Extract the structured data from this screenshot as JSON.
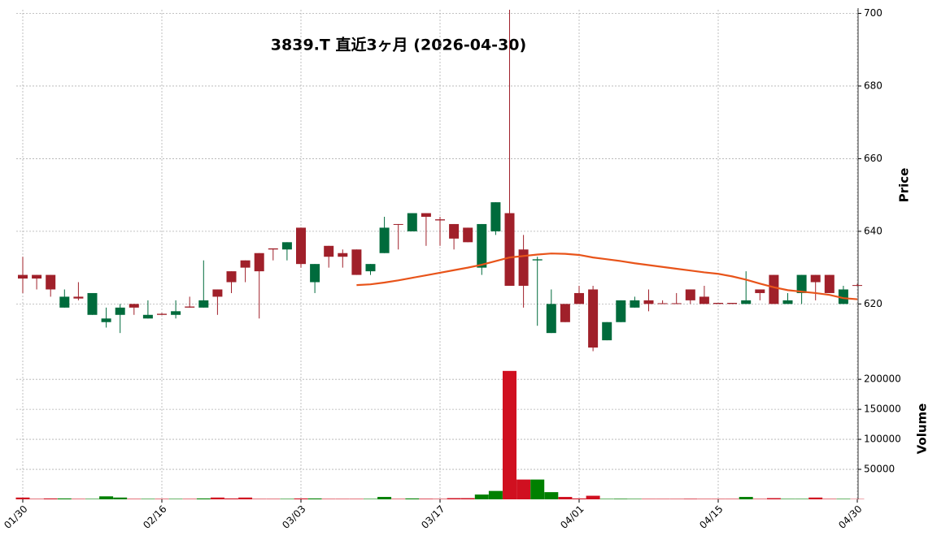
{
  "chart_data": {
    "type": "candlestick",
    "title": "3839.T  直近3ヶ月  (2026-04-30)",
    "categories": [
      "01/30",
      null,
      null,
      null,
      null,
      null,
      null,
      null,
      null,
      null,
      "02/16",
      null,
      null,
      null,
      null,
      null,
      null,
      null,
      null,
      null,
      "03/03",
      null,
      null,
      null,
      null,
      null,
      null,
      null,
      null,
      null,
      "03/17",
      null,
      null,
      null,
      null,
      null,
      null,
      null,
      null,
      null,
      "04/01",
      null,
      null,
      null,
      null,
      null,
      null,
      null,
      null,
      null,
      "04/15",
      null,
      null,
      null,
      null,
      null,
      null,
      null,
      null,
      null,
      "04/30"
    ],
    "open": [
      627,
      627,
      624,
      622,
      621.5,
      623,
      616,
      619,
      619,
      617,
      617,
      618,
      619,
      621,
      622,
      626,
      630,
      629,
      635,
      637,
      631,
      631,
      633,
      633,
      628,
      631,
      641,
      641.8,
      645,
      644,
      643,
      638,
      637,
      642,
      648,
      625,
      625,
      632.3,
      620,
      615,
      620,
      608,
      615,
      621,
      621,
      620,
      620,
      620,
      621,
      620,
      620,
      620,
      621,
      623,
      620,
      621,
      628,
      626,
      623,
      624,
      625
    ],
    "high": [
      633,
      628,
      628,
      624,
      626,
      623,
      619,
      620,
      620,
      621,
      617.5,
      621,
      622,
      632,
      624,
      629,
      632,
      634,
      635.3,
      637,
      641,
      631,
      636,
      635,
      635,
      631,
      644,
      642,
      645,
      645,
      644,
      642,
      641,
      642,
      648,
      701,
      639,
      633,
      624,
      620,
      625,
      625,
      615,
      621,
      622,
      624,
      621,
      623,
      624,
      625,
      620.3,
      620.3,
      629,
      624,
      628,
      623,
      628,
      628,
      628,
      625,
      625.5
    ],
    "low": [
      623,
      624,
      622,
      619,
      621,
      617,
      613.5,
      612,
      617,
      616,
      617,
      616,
      619,
      619,
      617,
      623,
      626,
      616,
      632,
      632,
      630,
      623,
      630,
      630,
      628,
      628,
      634,
      635,
      640,
      636,
      636,
      635,
      637,
      628,
      639,
      625,
      619,
      614,
      612,
      615,
      620,
      607,
      610,
      615,
      619,
      618,
      620,
      620,
      620,
      620,
      620,
      620,
      620,
      621,
      620,
      620,
      620,
      621,
      623,
      620,
      625
    ],
    "close": [
      628,
      628,
      628,
      619,
      622,
      617,
      615,
      617,
      620,
      616,
      617.3,
      617,
      619.3,
      619,
      624,
      629,
      632,
      634,
      635.3,
      635,
      641,
      626,
      636,
      634,
      635,
      629,
      634,
      642,
      640,
      645,
      643.3,
      642,
      641,
      630,
      640,
      645,
      635,
      632,
      612,
      620,
      623,
      624,
      610,
      615,
      619,
      621,
      620.2,
      620.2,
      624,
      622,
      620.3,
      620.3,
      620,
      624,
      628,
      620,
      623,
      628,
      628,
      620,
      625.2
    ],
    "volume": [
      3000,
      800,
      1500,
      1500,
      800,
      800,
      5000,
      3000,
      800,
      800,
      800,
      800,
      800,
      1500,
      3000,
      1500,
      3000,
      800,
      800,
      800,
      1500,
      1500,
      800,
      800,
      800,
      800,
      4000,
      800,
      1500,
      1000,
      800,
      2000,
      2000,
      8000,
      14000,
      214000,
      33000,
      33000,
      12000,
      4000,
      1500,
      6000,
      800,
      1000,
      800,
      800,
      800,
      800,
      1000,
      800,
      800,
      800,
      4000,
      800,
      2000,
      800,
      800,
      3000,
      800,
      800,
      500
    ],
    "ma": [
      null,
      null,
      null,
      null,
      null,
      null,
      null,
      null,
      null,
      null,
      null,
      null,
      null,
      null,
      null,
      null,
      null,
      null,
      null,
      null,
      null,
      null,
      null,
      null,
      625.2,
      625.4,
      625.9,
      626.5,
      627.2,
      627.9,
      628.6,
      629.3,
      630.0,
      630.8,
      631.8,
      632.8,
      633.2,
      633.6,
      633.9,
      633.8,
      633.5,
      632.8,
      632.3,
      631.8,
      631.2,
      630.7,
      630.2,
      629.7,
      629.2,
      628.7,
      628.3,
      627.6,
      626.7,
      625.6,
      624.6,
      623.8,
      623.4,
      623.0,
      622.5,
      621.6,
      621.3
    ],
    "up_color": "#a0202a",
    "down_color": "#006b3c",
    "volume_up_color": "#d01020",
    "volume_down_color": "#008000",
    "ma_color": "#e8541a",
    "ylabel": "Price",
    "ylim": [
      606,
      701
    ],
    "yticks": [
      620,
      640,
      660,
      680,
      700
    ],
    "y2label": "Volume",
    "y2lim": [
      0,
      230000
    ],
    "y2ticks": [
      50000,
      100000,
      150000,
      200000
    ],
    "grid": true
  }
}
